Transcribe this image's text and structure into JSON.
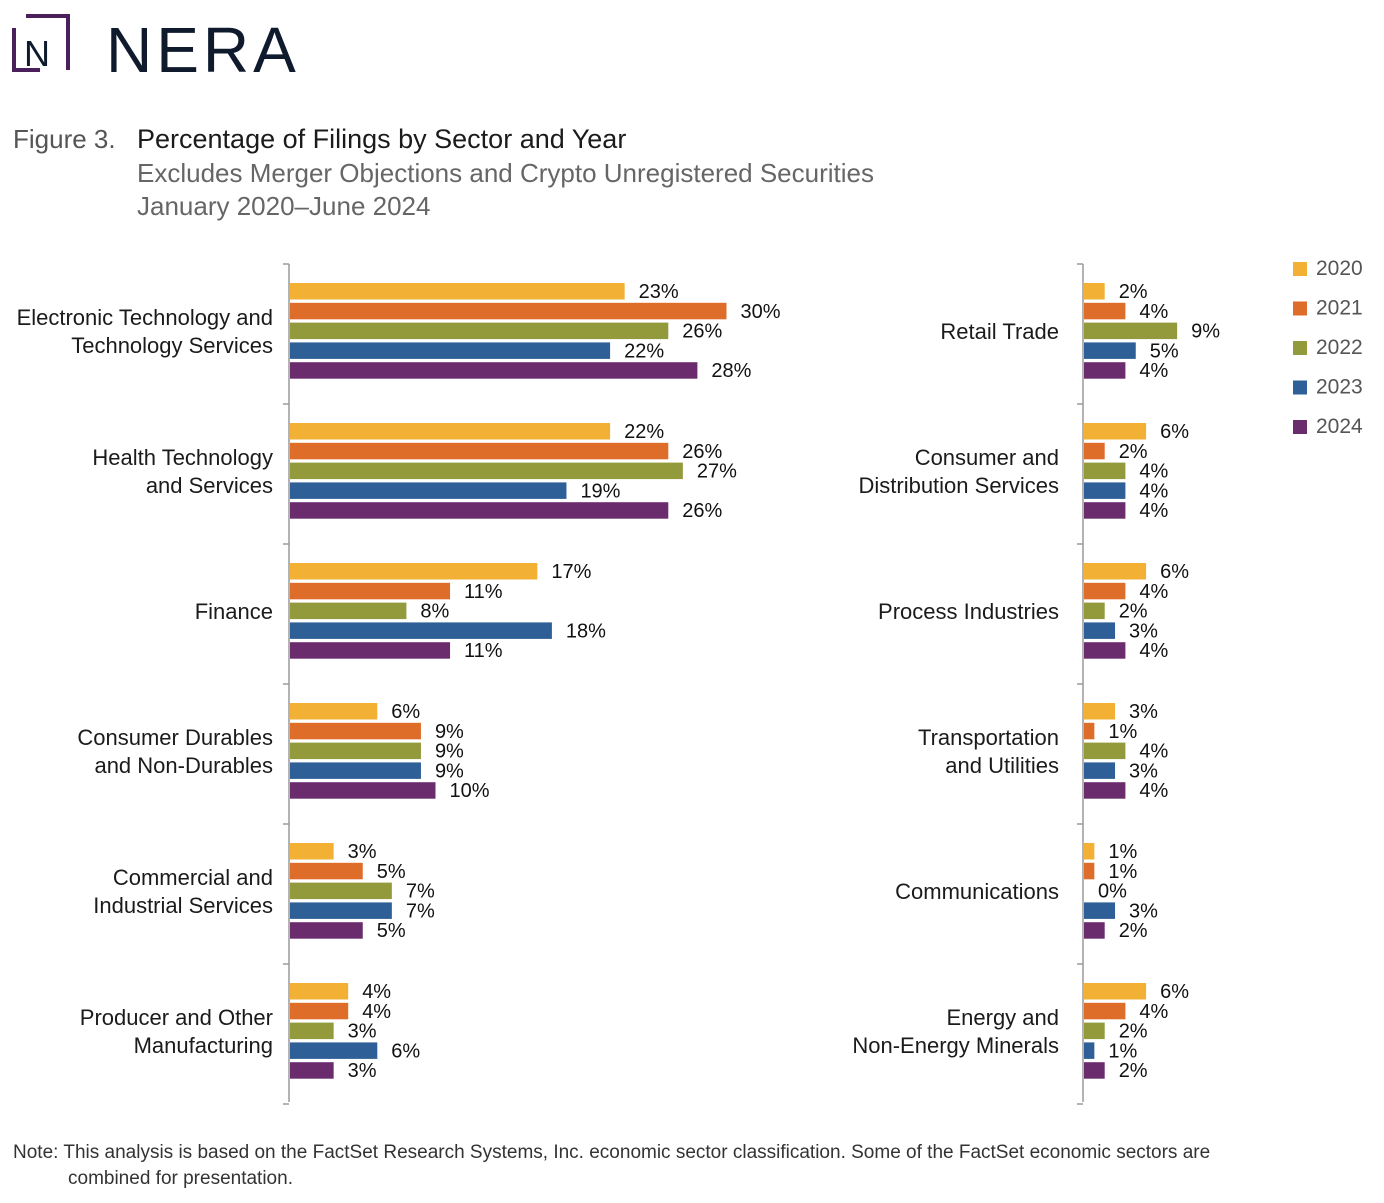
{
  "brand": {
    "name": "NERA",
    "colors": {
      "logo_mark": "#4a1f5c",
      "logo_text": "#0f1b2d"
    }
  },
  "figure": {
    "number": "Figure 3.",
    "title": "Percentage of Filings by Sector and Year",
    "subtitle": "Excludes Merger Objections and Crypto Unregistered Securities",
    "period": "January 2020–June 2024"
  },
  "note": {
    "line1": "Note: This analysis is based on the FactSet Research Systems, Inc. economic sector classification. Some of the FactSet economic sectors are",
    "line2": "combined for presentation."
  },
  "chart_data": {
    "type": "bar",
    "orientation": "horizontal",
    "unit": "%",
    "legend_position": "top-right",
    "series": [
      {
        "name": "2020",
        "color": "#f2b134"
      },
      {
        "name": "2021",
        "color": "#df6d2a"
      },
      {
        "name": "2022",
        "color": "#929a3c"
      },
      {
        "name": "2023",
        "color": "#2e5f96"
      },
      {
        "name": "2024",
        "color": "#6b2c6e"
      }
    ],
    "panels": [
      {
        "groups": [
          {
            "label": [
              "Electronic Technology and",
              "Technology Services"
            ],
            "values": [
              23,
              30,
              26,
              22,
              28
            ]
          },
          {
            "label": [
              "Health Technology",
              "and Services"
            ],
            "values": [
              22,
              26,
              27,
              19,
              26
            ]
          },
          {
            "label": [
              "Finance"
            ],
            "values": [
              17,
              11,
              8,
              18,
              11
            ]
          },
          {
            "label": [
              "Consumer Durables",
              "and Non-Durables"
            ],
            "values": [
              6,
              9,
              9,
              9,
              10
            ]
          },
          {
            "label": [
              "Commercial and",
              "Industrial Services"
            ],
            "values": [
              3,
              5,
              7,
              7,
              5
            ]
          },
          {
            "label": [
              "Producer and Other",
              "Manufacturing"
            ],
            "values": [
              4,
              4,
              3,
              6,
              3
            ]
          }
        ]
      },
      {
        "groups": [
          {
            "label": [
              "Retail Trade"
            ],
            "values": [
              2,
              4,
              9,
              5,
              4
            ]
          },
          {
            "label": [
              "Consumer and",
              "Distribution Services"
            ],
            "values": [
              6,
              2,
              4,
              4,
              4
            ]
          },
          {
            "label": [
              "Process Industries"
            ],
            "values": [
              6,
              4,
              2,
              3,
              4
            ]
          },
          {
            "label": [
              "Transportation",
              "and Utilities"
            ],
            "values": [
              3,
              1,
              4,
              3,
              4
            ]
          },
          {
            "label": [
              "Communications"
            ],
            "values": [
              1,
              1,
              0,
              3,
              2
            ]
          },
          {
            "label": [
              "Energy and",
              "Non-Energy Minerals"
            ],
            "values": [
              6,
              4,
              2,
              1,
              2
            ]
          }
        ]
      }
    ]
  }
}
